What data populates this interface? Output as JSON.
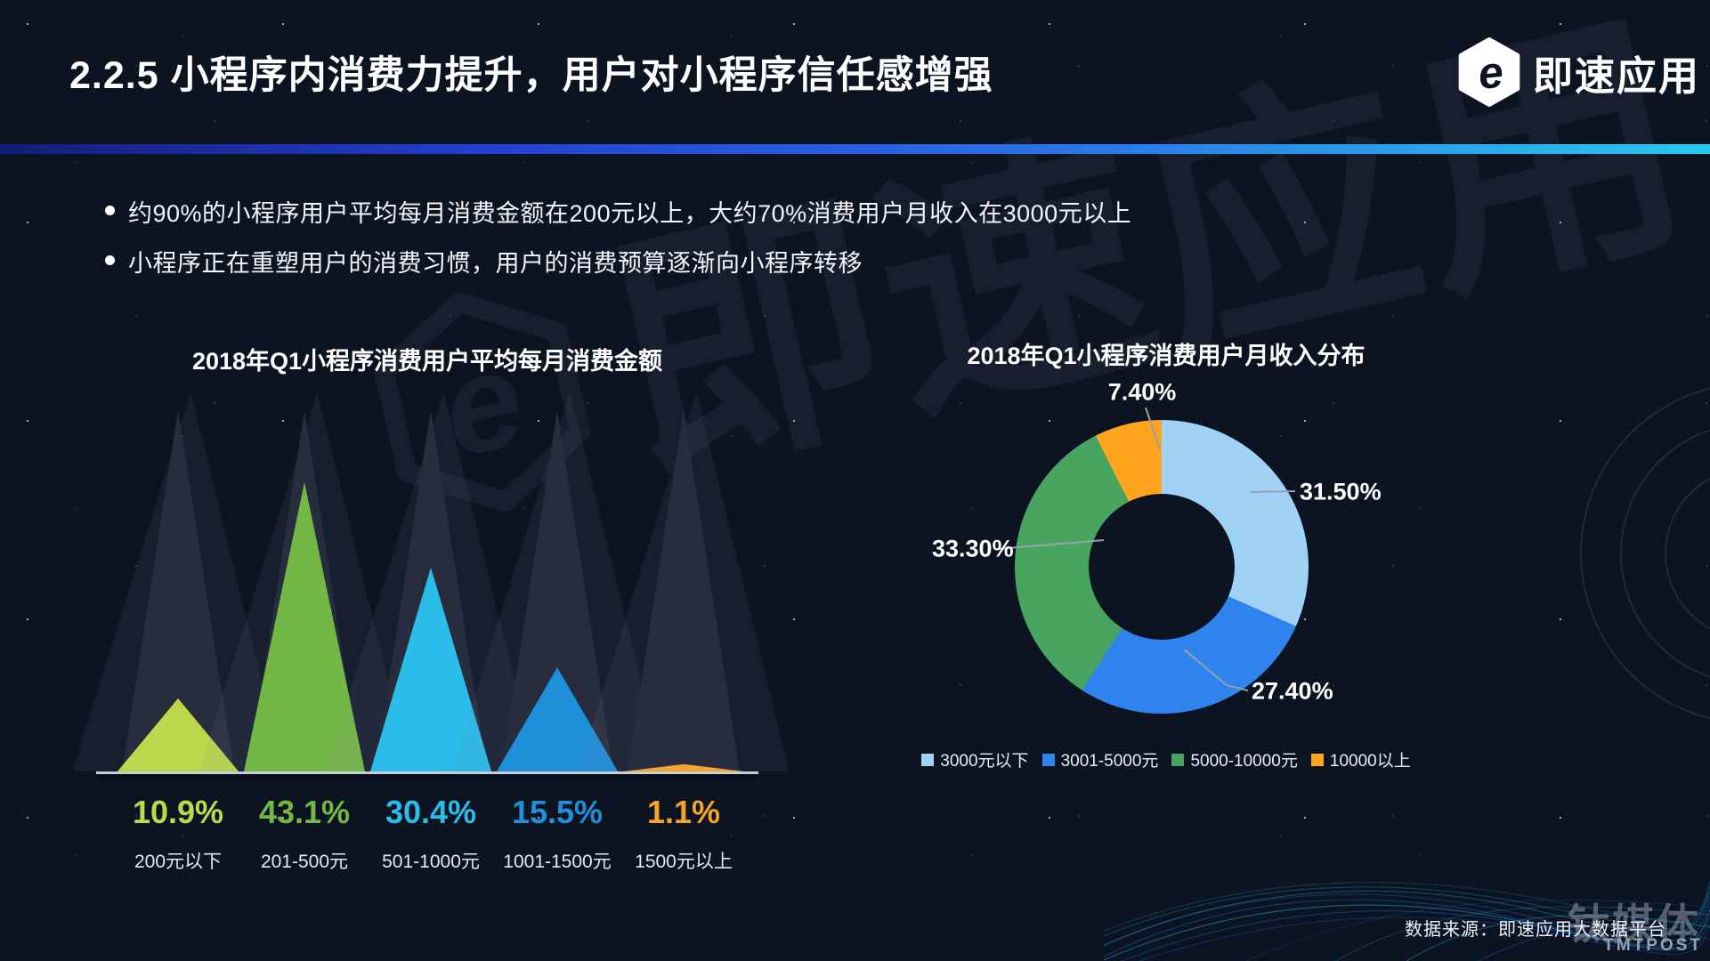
{
  "slide": {
    "title": "2.2.5 小程序内消费力提升，用户对小程序信任感增强",
    "logo_text": "即速应用",
    "watermark_text": "即速应用",
    "bullets": [
      "约90%的小程序用户平均每月消费金额在200元以上，大约70%消费用户月收入在3000元以上",
      "小程序正在重塑用户的消费习惯，用户的消费预算逐渐向小程序转移"
    ],
    "source_text": "数据来源：即速应用大数据平台",
    "footer_watermark_cn": "钛媒体",
    "footer_watermark_en": "TMTPOST"
  },
  "chart_data": [
    {
      "type": "bar",
      "style": "peak-triangles",
      "title": "2018年Q1小程序消费用户平均每月消费金额",
      "categories": [
        "200元以下",
        "201-500元",
        "501-1000元",
        "1001-1500元",
        "1500元以上"
      ],
      "values": [
        10.9,
        43.1,
        30.4,
        15.5,
        1.1
      ],
      "display_values": [
        "10.9%",
        "43.1%",
        "30.4%",
        "15.5%",
        "1.1%"
      ],
      "unit": "%",
      "ylim": [
        0,
        45
      ],
      "colors": [
        "#bdd94b",
        "#73b844",
        "#2abde9",
        "#1e8fd9",
        "#f3a52a"
      ],
      "background_triangle_color": "#272d3c"
    },
    {
      "type": "pie",
      "style": "donut",
      "title": "2018年Q1小程序消费用户月收入分布",
      "labels": [
        "3000元以下",
        "3001-5000元",
        "5000-10000元",
        "10000以上"
      ],
      "values": [
        31.5,
        27.4,
        33.3,
        7.4
      ],
      "display_labels": [
        "31.50%",
        "27.40%",
        "33.30%",
        "7.40%"
      ],
      "colors": [
        "#9fd2f5",
        "#2e84ec",
        "#48a560",
        "#ffa41c"
      ],
      "start_angle_deg": 0,
      "direction": "clockwise",
      "legend_position": "bottom"
    }
  ]
}
